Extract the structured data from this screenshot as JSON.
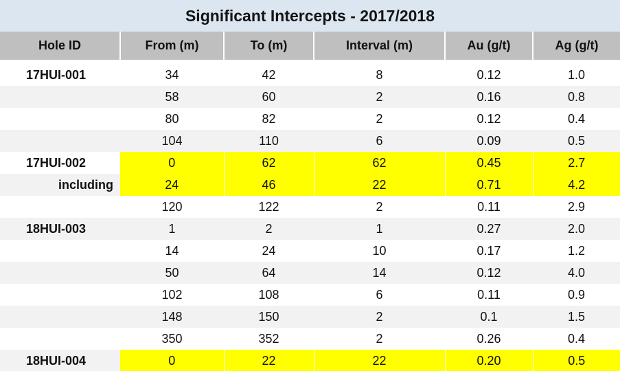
{
  "title": "Significant Intercepts - 2017/2018",
  "columns": [
    "Hole ID",
    "From (m)",
    "To (m)",
    "Interval (m)",
    "Au (g/t)",
    "Ag (g/t)"
  ],
  "highlight_color": "#ffff00",
  "rows": [
    {
      "hole": "17HUI-001",
      "from": "34",
      "to": "42",
      "interval": "8",
      "au": "0.12",
      "ag": "1.0",
      "highlight": false,
      "alt": false,
      "sub": false
    },
    {
      "hole": "",
      "from": "58",
      "to": "60",
      "interval": "2",
      "au": "0.16",
      "ag": "0.8",
      "highlight": false,
      "alt": true,
      "sub": false
    },
    {
      "hole": "",
      "from": "80",
      "to": "82",
      "interval": "2",
      "au": "0.12",
      "ag": "0.4",
      "highlight": false,
      "alt": false,
      "sub": false
    },
    {
      "hole": "",
      "from": "104",
      "to": "110",
      "interval": "6",
      "au": "0.09",
      "ag": "0.5",
      "highlight": false,
      "alt": true,
      "sub": false
    },
    {
      "hole": "17HUI-002",
      "from": "0",
      "to": "62",
      "interval": "62",
      "au": "0.45",
      "ag": "2.7",
      "highlight": true,
      "alt": false,
      "sub": false
    },
    {
      "hole": "including",
      "from": "24",
      "to": "46",
      "interval": "22",
      "au": "0.71",
      "ag": "4.2",
      "highlight": true,
      "alt": true,
      "sub": true
    },
    {
      "hole": "",
      "from": "120",
      "to": "122",
      "interval": "2",
      "au": "0.11",
      "ag": "2.9",
      "highlight": false,
      "alt": false,
      "sub": false
    },
    {
      "hole": "18HUI-003",
      "from": "1",
      "to": "2",
      "interval": "1",
      "au": "0.27",
      "ag": "2.0",
      "highlight": false,
      "alt": true,
      "sub": false
    },
    {
      "hole": "",
      "from": "14",
      "to": "24",
      "interval": "10",
      "au": "0.17",
      "ag": "1.2",
      "highlight": false,
      "alt": false,
      "sub": false
    },
    {
      "hole": "",
      "from": "50",
      "to": "64",
      "interval": "14",
      "au": "0.12",
      "ag": "4.0",
      "highlight": false,
      "alt": true,
      "sub": false
    },
    {
      "hole": "",
      "from": "102",
      "to": "108",
      "interval": "6",
      "au": "0.11",
      "ag": "0.9",
      "highlight": false,
      "alt": false,
      "sub": false
    },
    {
      "hole": "",
      "from": "148",
      "to": "150",
      "interval": "2",
      "au": "0.1",
      "ag": "1.5",
      "highlight": false,
      "alt": true,
      "sub": false
    },
    {
      "hole": "",
      "from": "350",
      "to": "352",
      "interval": "2",
      "au": "0.26",
      "ag": "0.4",
      "highlight": false,
      "alt": false,
      "sub": false
    },
    {
      "hole": "18HUI-004",
      "from": "0",
      "to": "22",
      "interval": "22",
      "au": "0.20",
      "ag": "0.5",
      "highlight": true,
      "alt": true,
      "sub": false
    }
  ]
}
